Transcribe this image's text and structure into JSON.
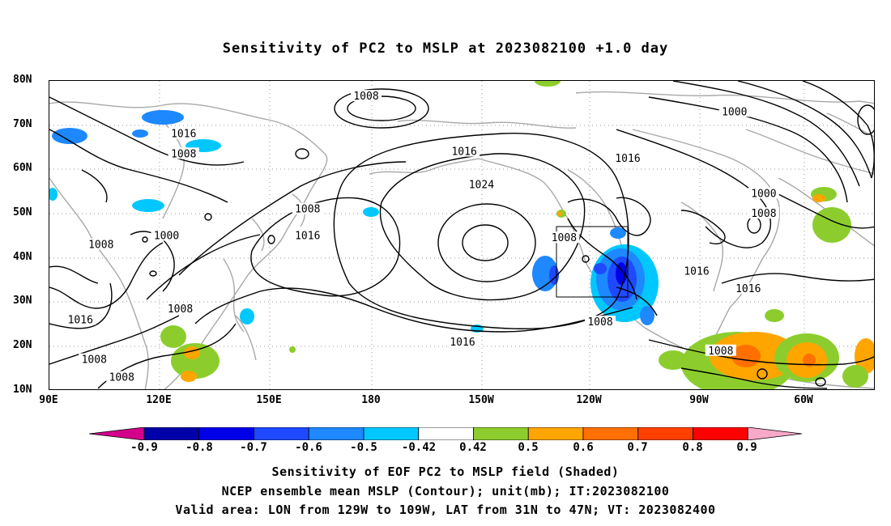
{
  "title": "Sensitivity of PC2 to MSLP at 2023082100 +1.0 day",
  "lat_labels": [
    "80N",
    "70N",
    "60N",
    "50N",
    "40N",
    "30N",
    "20N",
    "10N"
  ],
  "lon_labels": [
    "90E",
    "120E",
    "150E",
    "180",
    "150W",
    "120W",
    "90W",
    "60W"
  ],
  "contour_labels": [
    {
      "text": "1008",
      "lon": -178,
      "lat": 76.5
    },
    {
      "text": "1016",
      "lon": 129,
      "lat": 68
    },
    {
      "text": "1008",
      "lon": 129,
      "lat": 63.5
    },
    {
      "text": "1000",
      "lon": -71,
      "lat": 73
    },
    {
      "text": "1016",
      "lon": -149.5,
      "lat": 64
    },
    {
      "text": "1016",
      "lon": -102,
      "lat": 62.5
    },
    {
      "text": "1024",
      "lon": -144.5,
      "lat": 56.5
    },
    {
      "text": "1008",
      "lon": 165,
      "lat": 51
    },
    {
      "text": "1000",
      "lon": -62.5,
      "lat": 54.5
    },
    {
      "text": "1008",
      "lon": -62.5,
      "lat": 50
    },
    {
      "text": "1008",
      "lon": 105,
      "lat": 43
    },
    {
      "text": "1000",
      "lon": 124,
      "lat": 45
    },
    {
      "text": "1016",
      "lon": 165,
      "lat": 45
    },
    {
      "text": "1008",
      "lon": -120.5,
      "lat": 44.5
    },
    {
      "text": "1016",
      "lon": -82,
      "lat": 37
    },
    {
      "text": "1016",
      "lon": -67,
      "lat": 33
    },
    {
      "text": "1008",
      "lon": 128,
      "lat": 28.5
    },
    {
      "text": "1016",
      "lon": 99,
      "lat": 26
    },
    {
      "text": "1008",
      "lon": -110,
      "lat": 25.5
    },
    {
      "text": "1016",
      "lon": -150,
      "lat": 21
    },
    {
      "text": "1008",
      "lon": -75,
      "lat": 19
    },
    {
      "text": "1008",
      "lon": 103,
      "lat": 17
    },
    {
      "text": "1008",
      "lon": 111,
      "lat": 13
    }
  ],
  "colorbar": {
    "levels": [
      "-0.9",
      "-0.8",
      "-0.7",
      "-0.6",
      "-0.5",
      "-0.42",
      "0.42",
      "0.5",
      "0.6",
      "0.7",
      "0.8",
      "0.9"
    ],
    "colors": [
      "#d4008c",
      "#0000a8",
      "#0000e8",
      "#1f49ff",
      "#1e88ff",
      "#00c8ff",
      "#ffffff",
      "#8ccd2d",
      "#ffa500",
      "#ff7000",
      "#ff4000",
      "#ff0000",
      "#f8a8c8"
    ]
  },
  "captions": [
    "Sensitivity of EOF PC2 to MSLP field (Shaded)",
    "NCEP ensemble mean MSLP (Contour); unit(mb); IT:2023082100",
    "Valid area: LON from 129W to 109W, LAT from 31N to 47N; VT: 2023082400"
  ]
}
